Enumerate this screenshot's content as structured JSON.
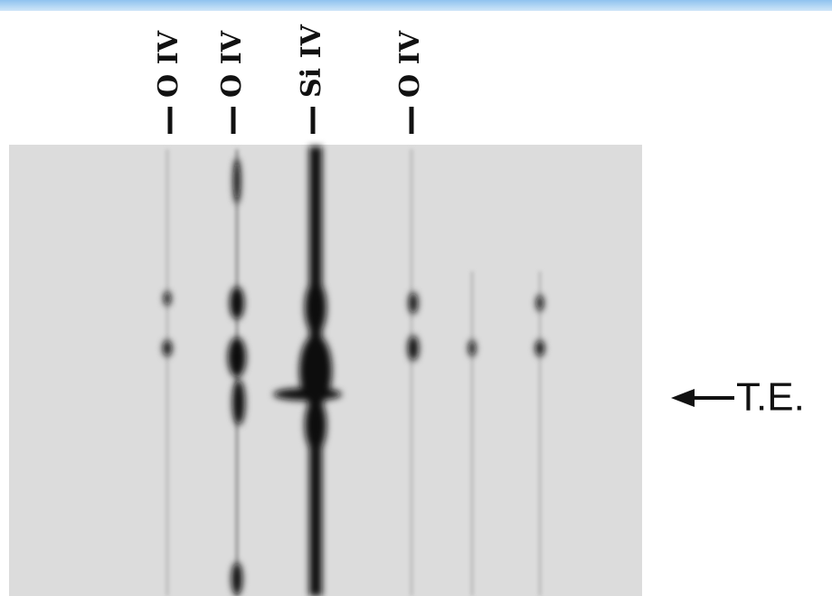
{
  "line_labels": [
    "O IV",
    "O IV",
    "Si IV",
    "O IV"
  ],
  "marker_label": "T.E."
}
